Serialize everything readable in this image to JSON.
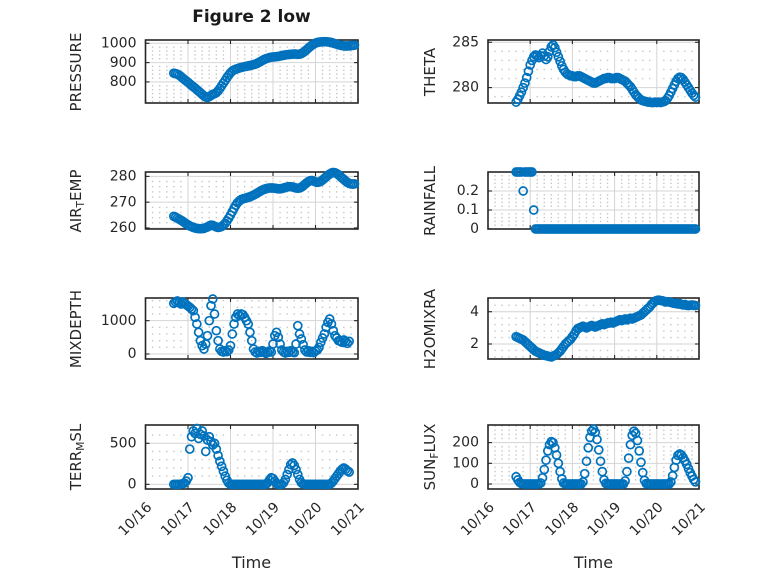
{
  "figure": {
    "title": "Figure 2 low",
    "xlabel": "Time",
    "background": "#ffffff",
    "marker_color": "#0072BD",
    "axis_color": "#262626",
    "grid_color": "#d4d4d4",
    "minor_grid_color": "#c6c6c6",
    "text_color": "#262626"
  },
  "chart_data": {
    "type": "scatter",
    "marker": "o",
    "grid": "major and minor dotted",
    "x": {
      "unit": "days since 10/16 00:00",
      "start_day": 0.66667,
      "step_day": 0.0416667,
      "n": 103,
      "xlim": [
        0,
        5
      ],
      "xtick_values": [
        0,
        1,
        2,
        3,
        4,
        5
      ],
      "xtick_labels": [
        "10/16",
        "10/17",
        "10/18",
        "10/19",
        "10/20",
        "10/21"
      ]
    },
    "plots": [
      {
        "id": "pressure",
        "name": "PRESSURE",
        "row": 0,
        "col": 0,
        "ylabel_parts": [
          {
            "t": "PRESSURE",
            "sub": false
          }
        ],
        "yticks": [
          800,
          900,
          1000
        ],
        "ytick_labels": [
          "800",
          "900",
          "1000"
        ],
        "ylim": [
          691,
          1017
        ],
        "values": [
          845,
          843,
          840,
          835,
          828,
          820,
          812,
          805,
          798,
          790,
          782,
          775,
          768,
          760,
          752,
          744,
          736,
          728,
          722,
          720,
          724,
          730,
          736,
          739,
          744,
          754,
          766,
          780,
          794,
          808,
          822,
          835,
          847,
          856,
          862,
          866,
          869,
          872,
          875,
          877,
          879,
          881,
          883,
          885,
          887,
          889,
          892,
          896,
          901,
          906,
          911,
          916,
          920,
          923,
          926,
          928,
          929,
          930,
          931,
          932,
          934,
          936,
          938,
          940,
          941,
          942,
          943,
          944,
          945,
          944,
          943,
          944,
          947,
          952,
          959,
          967,
          975,
          983,
          990,
          996,
          1001,
          1004,
          1006,
          1007,
          1008,
          1008,
          1008,
          1007,
          1006,
          1004,
          1001,
          998,
          995,
          992,
          990,
          988,
          987,
          986,
          986,
          987,
          988,
          989,
          990
        ]
      },
      {
        "id": "theta",
        "name": "THETA",
        "row": 0,
        "col": 1,
        "ylabel_parts": [
          {
            "t": "THETA",
            "sub": false
          }
        ],
        "yticks": [
          280,
          285
        ],
        "ytick_labels": [
          "280",
          "285"
        ],
        "ylim": [
          278.3,
          285.25
        ],
        "values": [
          278.4,
          278.7,
          279.1,
          279.5,
          280.0,
          280.5,
          281.1,
          281.8,
          282.5,
          283.0,
          283.4,
          283.6,
          283.5,
          283.3,
          283.5,
          283.8,
          283.5,
          283.1,
          283.4,
          284.0,
          284.5,
          284.7,
          284.4,
          283.9,
          283.4,
          282.9,
          282.4,
          282.0,
          281.7,
          281.5,
          281.4,
          281.3,
          281.3,
          281.2,
          281.2,
          281.3,
          281.3,
          281.2,
          281.1,
          281.0,
          280.9,
          280.8,
          280.7,
          280.6,
          280.5,
          280.5,
          280.6,
          280.7,
          280.8,
          280.9,
          281.0,
          281.0,
          281.1,
          281.1,
          281.0,
          281.0,
          281.0,
          281.1,
          281.1,
          281.0,
          280.9,
          280.8,
          280.7,
          280.5,
          280.3,
          280.1,
          279.8,
          279.5,
          279.2,
          279.0,
          278.8,
          278.65,
          278.55,
          278.5,
          278.45,
          278.4,
          278.4,
          278.35,
          278.35,
          278.4,
          278.35,
          278.4,
          278.35,
          278.4,
          278.45,
          278.55,
          278.8,
          279.1,
          279.5,
          279.9,
          280.3,
          280.7,
          281.0,
          281.15,
          281.1,
          280.9,
          280.6,
          280.3,
          280.0,
          279.7,
          279.4,
          279.15,
          278.95
        ]
      },
      {
        "id": "airtemp",
        "name": "AIR_TEMP",
        "row": 1,
        "col": 0,
        "ylabel_parts": [
          {
            "t": "AIR",
            "sub": false
          },
          {
            "t": "T",
            "sub": true
          },
          {
            "t": "EMP",
            "sub": false
          }
        ],
        "yticks": [
          260,
          270,
          280
        ],
        "ytick_labels": [
          "260",
          "270",
          "280"
        ],
        "ylim": [
          259.6,
          281.7
        ],
        "values": [
          264.5,
          264.2,
          263.8,
          263.4,
          263.0,
          262.6,
          262.1,
          261.6,
          261.2,
          260.8,
          260.5,
          260.2,
          260.0,
          259.85,
          259.75,
          259.7,
          259.75,
          259.85,
          260.1,
          260.4,
          260.8,
          261.1,
          261.0,
          260.7,
          260.4,
          260.2,
          260.3,
          260.6,
          261.1,
          261.8,
          262.7,
          263.8,
          265.0,
          266.3,
          267.6,
          268.8,
          269.8,
          270.5,
          271.0,
          271.3,
          271.5,
          271.7,
          271.9,
          272.1,
          272.4,
          272.7,
          273.1,
          273.5,
          273.9,
          274.3,
          274.7,
          275.0,
          275.2,
          275.4,
          275.5,
          275.5,
          275.5,
          275.4,
          275.3,
          275.2,
          275.2,
          275.3,
          275.5,
          275.7,
          275.9,
          276.0,
          276.0,
          275.9,
          275.7,
          275.5,
          275.4,
          275.5,
          275.8,
          276.3,
          276.9,
          277.5,
          278.0,
          278.3,
          278.4,
          278.2,
          277.9,
          277.7,
          277.8,
          278.1,
          278.6,
          279.2,
          279.8,
          280.4,
          280.9,
          281.3,
          281.5,
          281.4,
          281.1,
          280.6,
          280.0,
          279.4,
          278.8,
          278.2,
          277.7,
          277.3,
          277.1,
          277.0,
          277.1
        ]
      },
      {
        "id": "rainfall",
        "name": "RAINFALL",
        "row": 1,
        "col": 1,
        "ylabel_parts": [
          {
            "t": "RAINFALL",
            "sub": false
          }
        ],
        "yticks": [
          0,
          0.1,
          0.2
        ],
        "ytick_labels": [
          "0",
          "0.1",
          "0.2"
        ],
        "ylim": [
          0,
          0.3
        ],
        "values": [
          0.3,
          0.3,
          0.3,
          0.3,
          0.2,
          0.3,
          0.3,
          0.3,
          0.3,
          0.3,
          0.1,
          0,
          0,
          0,
          0,
          0,
          0,
          0,
          0,
          0,
          0,
          0,
          0,
          0,
          0,
          0,
          0,
          0,
          0,
          0,
          0,
          0,
          0,
          0,
          0,
          0,
          0,
          0,
          0,
          0,
          0,
          0,
          0,
          0,
          0,
          0,
          0,
          0,
          0,
          0,
          0,
          0,
          0,
          0,
          0,
          0,
          0,
          0,
          0,
          0,
          0,
          0,
          0,
          0,
          0,
          0,
          0,
          0,
          0,
          0,
          0,
          0,
          0,
          0,
          0,
          0,
          0,
          0,
          0,
          0,
          0,
          0,
          0,
          0,
          0,
          0,
          0,
          0,
          0,
          0,
          0,
          0,
          0,
          0,
          0,
          0,
          0,
          0,
          0,
          0,
          0,
          0,
          0
        ]
      },
      {
        "id": "mixdepth",
        "name": "MIXDEPTH",
        "row": 2,
        "col": 0,
        "ylabel_parts": [
          {
            "t": "MIXDEPTH",
            "sub": false
          }
        ],
        "yticks": [
          0,
          1000
        ],
        "ytick_labels": [
          "0",
          "1000"
        ],
        "ylim": [
          -150,
          1680
        ],
        "values": [
          1520,
          1560,
          1590,
          1545,
          1500,
          1560,
          1520,
          1480,
          1440,
          1400,
          1350,
          1300,
          1100,
          900,
          650,
          400,
          250,
          150,
          300,
          550,
          1000,
          1450,
          1650,
          1200,
          700,
          400,
          150,
          80,
          60,
          100,
          70,
          120,
          250,
          600,
          900,
          1100,
          1200,
          1150,
          1200,
          1180,
          1100,
          1000,
          900,
          650,
          400,
          150,
          60,
          30,
          80,
          50,
          100,
          60,
          20,
          50,
          90,
          60,
          300,
          550,
          650,
          500,
          300,
          120,
          60,
          30,
          80,
          50,
          100,
          60,
          40,
          300,
          850,
          600,
          450,
          280,
          120,
          60,
          100,
          50,
          80,
          40,
          90,
          120,
          200,
          350,
          480,
          600,
          800,
          950,
          1050,
          900,
          700,
          550,
          480,
          400,
          380,
          350,
          420,
          380,
          320,
          380,
          null,
          null,
          null
        ]
      },
      {
        "id": "h2omixra",
        "name": "H2OMIXRA",
        "row": 2,
        "col": 1,
        "ylabel_parts": [
          {
            "t": "H2OMIXRA",
            "sub": false
          }
        ],
        "yticks": [
          2,
          4
        ],
        "ytick_labels": [
          "2",
          "4"
        ],
        "ylim": [
          1.07,
          4.85
        ],
        "values": [
          2.45,
          2.4,
          2.35,
          2.3,
          2.25,
          2.15,
          2.05,
          1.95,
          1.85,
          1.75,
          1.65,
          1.55,
          1.5,
          1.45,
          1.4,
          1.35,
          1.3,
          1.28,
          1.25,
          1.22,
          1.2,
          1.25,
          1.3,
          1.35,
          1.45,
          1.55,
          1.7,
          1.85,
          2.0,
          2.1,
          2.2,
          2.3,
          2.45,
          2.6,
          2.8,
          2.95,
          3.0,
          3.05,
          3.1,
          3.05,
          3.0,
          3.05,
          3.1,
          3.15,
          3.1,
          3.05,
          3.1,
          3.15,
          3.2,
          3.25,
          3.2,
          3.25,
          3.3,
          3.3,
          3.35,
          3.3,
          3.35,
          3.4,
          3.45,
          3.5,
          3.45,
          3.5,
          3.55,
          3.5,
          3.55,
          3.6,
          3.55,
          3.6,
          3.65,
          3.7,
          3.75,
          3.8,
          3.9,
          4.0,
          4.1,
          4.2,
          4.3,
          4.45,
          4.55,
          4.65,
          4.7,
          4.72,
          4.7,
          4.68,
          4.65,
          4.6,
          4.62,
          4.6,
          4.58,
          4.55,
          4.52,
          4.5,
          4.48,
          4.5,
          4.45,
          4.42,
          4.45,
          4.4,
          4.38,
          4.4,
          4.42,
          4.4,
          4.38
        ]
      },
      {
        "id": "terrmsl",
        "name": "TERR_MSL",
        "row": 3,
        "col": 0,
        "ylabel_parts": [
          {
            "t": "TERR",
            "sub": false
          },
          {
            "t": "M",
            "sub": true
          },
          {
            "t": "SL",
            "sub": false
          }
        ],
        "yticks": [
          0,
          500
        ],
        "ytick_labels": [
          "0",
          "500"
        ],
        "ylim": [
          -57,
          723
        ],
        "values": [
          0,
          0,
          0,
          0,
          3,
          8,
          15,
          40,
          80,
          430,
          580,
          650,
          620,
          680,
          560,
          610,
          650,
          590,
          400,
          540,
          580,
          520,
          480,
          500,
          430,
          350,
          280,
          220,
          160,
          100,
          50,
          15,
          0,
          0,
          0,
          0,
          0,
          0,
          0,
          0,
          0,
          0,
          0,
          0,
          0,
          0,
          0,
          0,
          0,
          0,
          0,
          0,
          0,
          20,
          50,
          80,
          70,
          40,
          10,
          0,
          0,
          0,
          20,
          60,
          120,
          180,
          240,
          260,
          230,
          180,
          120,
          60,
          20,
          5,
          0,
          0,
          0,
          0,
          0,
          0,
          0,
          0,
          0,
          0,
          0,
          0,
          0,
          0,
          0,
          15,
          40,
          70,
          100,
          130,
          160,
          185,
          200,
          185,
          165,
          150,
          null,
          null,
          null
        ]
      },
      {
        "id": "sunflux",
        "name": "SUN_FLUX",
        "row": 3,
        "col": 1,
        "ylabel_parts": [
          {
            "t": "SUN",
            "sub": false
          },
          {
            "t": "F",
            "sub": true
          },
          {
            "t": "LUX",
            "sub": false
          }
        ],
        "yticks": [
          0,
          100,
          200
        ],
        "ytick_labels": [
          "0",
          "100",
          "200"
        ],
        "ylim": [
          -24,
          285
        ],
        "values": [
          35,
          20,
          8,
          2,
          0,
          0,
          0,
          0,
          0,
          0,
          0,
          0,
          0,
          0,
          5,
          30,
          70,
          115,
          160,
          190,
          205,
          200,
          175,
          140,
          100,
          60,
          25,
          5,
          0,
          0,
          0,
          0,
          0,
          0,
          0,
          0,
          0,
          0,
          10,
          50,
          110,
          175,
          225,
          255,
          265,
          250,
          215,
          165,
          110,
          60,
          20,
          3,
          0,
          0,
          0,
          0,
          0,
          0,
          0,
          0,
          0,
          0,
          15,
          60,
          125,
          190,
          235,
          255,
          245,
          210,
          160,
          105,
          55,
          18,
          2,
          0,
          0,
          0,
          0,
          0,
          0,
          0,
          0,
          0,
          0,
          0,
          0,
          0,
          10,
          40,
          80,
          115,
          138,
          145,
          140,
          128,
          112,
          95,
          75,
          55,
          38,
          22,
          10
        ]
      }
    ]
  }
}
